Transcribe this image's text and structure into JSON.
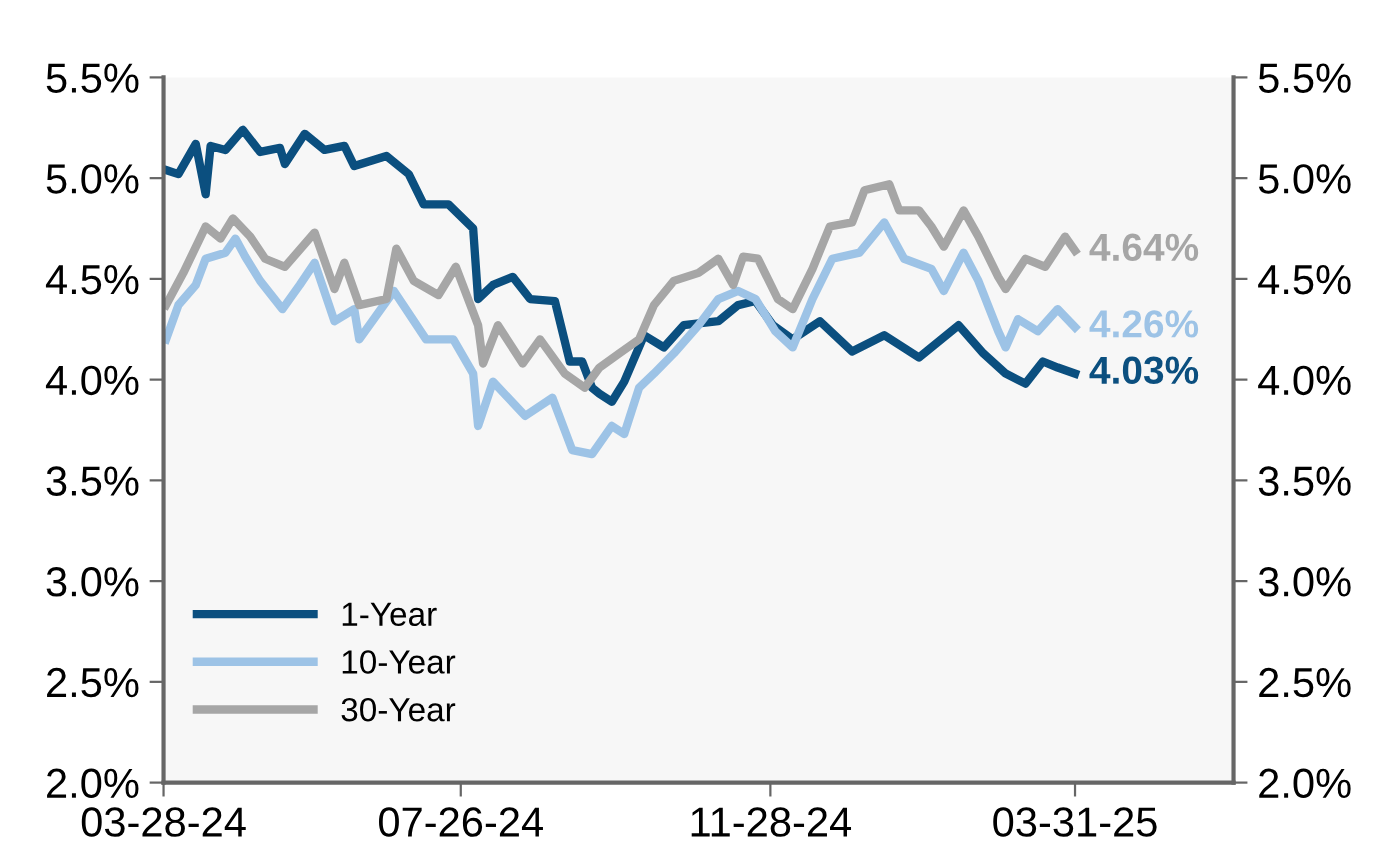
{
  "chart_data": {
    "type": "line",
    "xlim": [
      "2024-03-28",
      "2025-06-03"
    ],
    "xticks": [
      {
        "value": "2024-03-28",
        "label": "03-28-24"
      },
      {
        "value": "2024-07-26",
        "label": "07-26-24"
      },
      {
        "value": "2024-11-28",
        "label": "11-28-24"
      },
      {
        "value": "2025-03-31",
        "label": "03-31-25"
      }
    ],
    "ylim": [
      2.0,
      5.5
    ],
    "yticks": [
      {
        "value": 2.0,
        "label": "2.0%"
      },
      {
        "value": 2.5,
        "label": "2.5%"
      },
      {
        "value": 3.0,
        "label": "3.0%"
      },
      {
        "value": 3.5,
        "label": "3.5%"
      },
      {
        "value": 4.0,
        "label": "4.0%"
      },
      {
        "value": 4.5,
        "label": "4.5%"
      },
      {
        "value": 5.0,
        "label": "5.0%"
      },
      {
        "value": 5.5,
        "label": "5.5%"
      }
    ],
    "y2lim": [
      2.0,
      5.5
    ],
    "y2ticks": [
      {
        "value": 2.0,
        "label": "2.0%"
      },
      {
        "value": 2.5,
        "label": "2.5%"
      },
      {
        "value": 3.0,
        "label": "3.0%"
      },
      {
        "value": 3.5,
        "label": "3.5%"
      },
      {
        "value": 4.0,
        "label": "4.0%"
      },
      {
        "value": 4.5,
        "label": "4.5%"
      },
      {
        "value": 5.0,
        "label": "5.0%"
      },
      {
        "value": 5.5,
        "label": "5.5%"
      }
    ],
    "grid": false,
    "legend": "bottom left",
    "marker": "none",
    "line_style": "solid",
    "series": [
      {
        "name": "1-Year",
        "color": "#0b4f7f",
        "x": [
          "2024-03-29",
          "2024-04-03",
          "2024-04-10",
          "2024-04-14",
          "2024-04-16",
          "2024-04-22",
          "2024-04-29",
          "2024-05-06",
          "2024-05-14",
          "2024-05-16",
          "2024-05-24",
          "2024-06-01",
          "2024-06-09",
          "2024-06-13",
          "2024-06-26",
          "2024-07-05",
          "2024-07-11",
          "2024-07-21",
          "2024-07-31",
          "2024-08-02",
          "2024-08-08",
          "2024-08-16",
          "2024-08-23",
          "2024-09-02",
          "2024-09-08",
          "2024-09-13",
          "2024-09-17",
          "2024-09-20",
          "2024-09-25",
          "2024-09-30",
          "2024-10-08",
          "2024-10-16",
          "2024-10-24",
          "2024-11-07",
          "2024-11-15",
          "2024-11-22",
          "2024-11-29",
          "2024-12-07",
          "2024-12-18",
          "2024-12-31",
          "2025-01-13",
          "2025-01-27",
          "2025-02-12",
          "2025-02-22",
          "2025-03-03",
          "2025-03-11",
          "2025-03-18",
          "2025-03-24",
          "2025-03-31"
        ],
        "values": [
          5.04,
          5.02,
          5.17,
          4.92,
          5.16,
          5.14,
          5.24,
          5.13,
          5.15,
          5.07,
          5.22,
          5.14,
          5.16,
          5.06,
          5.11,
          5.02,
          4.87,
          4.87,
          4.75,
          4.4,
          4.47,
          4.51,
          4.4,
          4.39,
          4.09,
          4.09,
          3.96,
          3.93,
          3.89,
          3.99,
          4.22,
          4.16,
          4.27,
          4.29,
          4.37,
          4.39,
          4.27,
          4.2,
          4.29,
          4.14,
          4.22,
          4.11,
          4.27,
          4.13,
          4.03,
          3.98,
          4.09,
          4.06,
          4.03
        ]
      },
      {
        "name": "10-Year",
        "color": "#9dc3e6",
        "x": [
          "2024-03-29",
          "2024-04-03",
          "2024-04-10",
          "2024-04-14",
          "2024-04-22",
          "2024-04-26",
          "2024-04-30",
          "2024-05-06",
          "2024-05-15",
          "2024-05-22",
          "2024-05-28",
          "2024-06-05",
          "2024-06-13",
          "2024-06-15",
          "2024-06-29",
          "2024-07-12",
          "2024-07-23",
          "2024-07-31",
          "2024-08-02",
          "2024-08-08",
          "2024-08-21",
          "2024-09-01",
          "2024-09-09",
          "2024-09-17",
          "2024-09-25",
          "2024-09-30",
          "2024-10-06",
          "2024-10-12",
          "2024-10-20",
          "2024-10-30",
          "2024-11-07",
          "2024-11-15",
          "2024-11-22",
          "2024-11-30",
          "2024-12-07",
          "2024-12-15",
          "2024-12-23",
          "2025-01-03",
          "2025-01-13",
          "2025-01-21",
          "2025-02-01",
          "2025-02-06",
          "2025-02-14",
          "2025-02-20",
          "2025-02-28",
          "2025-03-03",
          "2025-03-08",
          "2025-03-16",
          "2025-03-24",
          "2025-03-31"
        ],
        "values": [
          4.2,
          4.37,
          4.47,
          4.6,
          4.63,
          4.7,
          4.61,
          4.49,
          4.35,
          4.47,
          4.58,
          4.29,
          4.35,
          4.2,
          4.44,
          4.2,
          4.2,
          4.03,
          3.77,
          3.99,
          3.82,
          3.91,
          3.65,
          3.63,
          3.77,
          3.73,
          3.96,
          4.03,
          4.13,
          4.27,
          4.4,
          4.44,
          4.4,
          4.24,
          4.16,
          4.4,
          4.6,
          4.63,
          4.78,
          4.6,
          4.55,
          4.44,
          4.63,
          4.49,
          4.24,
          4.16,
          4.3,
          4.24,
          4.35,
          4.26
        ]
      },
      {
        "name": "30-Year",
        "color": "#a6a6a6",
        "x": [
          "2024-03-29",
          "2024-04-05",
          "2024-04-14",
          "2024-04-20",
          "2024-04-25",
          "2024-05-02",
          "2024-05-08",
          "2024-05-16",
          "2024-05-28",
          "2024-06-05",
          "2024-06-09",
          "2024-06-15",
          "2024-06-26",
          "2024-06-30",
          "2024-07-07",
          "2024-07-17",
          "2024-07-24",
          "2024-08-02",
          "2024-08-04",
          "2024-08-10",
          "2024-08-20",
          "2024-08-27",
          "2024-09-06",
          "2024-09-14",
          "2024-09-20",
          "2024-09-28",
          "2024-10-06",
          "2024-10-12",
          "2024-10-20",
          "2024-10-30",
          "2024-11-07",
          "2024-11-13",
          "2024-11-17",
          "2024-11-23",
          "2024-12-01",
          "2024-12-07",
          "2024-12-15",
          "2024-12-22",
          "2024-12-31",
          "2025-01-05",
          "2025-01-15",
          "2025-01-19",
          "2025-01-27",
          "2025-02-01",
          "2025-02-06",
          "2025-02-14",
          "2025-02-20",
          "2025-02-28",
          "2025-03-03",
          "2025-03-11",
          "2025-03-19",
          "2025-03-27",
          "2025-03-31"
        ],
        "values": [
          4.37,
          4.53,
          4.76,
          4.7,
          4.8,
          4.71,
          4.6,
          4.56,
          4.73,
          4.45,
          4.58,
          4.37,
          4.4,
          4.65,
          4.49,
          4.42,
          4.56,
          4.27,
          4.08,
          4.27,
          4.08,
          4.2,
          4.03,
          3.96,
          4.06,
          4.13,
          4.2,
          4.37,
          4.49,
          4.53,
          4.6,
          4.47,
          4.61,
          4.6,
          4.4,
          4.35,
          4.55,
          4.76,
          4.78,
          4.94,
          4.97,
          4.84,
          4.84,
          4.76,
          4.66,
          4.84,
          4.71,
          4.51,
          4.45,
          4.6,
          4.56,
          4.71,
          4.64
        ]
      }
    ],
    "annotations": [
      {
        "text": "4.03%",
        "x": "2025-03-31",
        "y": 4.03
      },
      {
        "text": "4.26%",
        "x": "2025-03-31",
        "y": 4.26
      },
      {
        "text": "4.64%",
        "x": "2025-03-31",
        "y": 4.64
      }
    ]
  }
}
